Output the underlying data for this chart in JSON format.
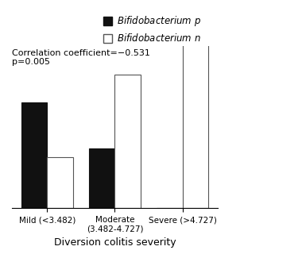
{
  "categories": [
    "Mild (<3.482)",
    "Moderate\n(3.482-4.727)",
    "Severe (>4.727)"
  ],
  "series1_label": "Bifidobacterium p",
  "series2_label": "Bifidobacterium n",
  "series1_values": [
    0.62,
    0.35,
    0.0
  ],
  "series2_values": [
    0.3,
    0.78,
    1.5
  ],
  "series1_color": "#111111",
  "series2_color": "#ffffff",
  "series1_edgecolor": "#111111",
  "series2_edgecolor": "#555555",
  "bar_width": 0.38,
  "ylim": [
    0,
    0.95
  ],
  "xlabel": "Diversion colitis severity",
  "annotation": "Correlation coefficient=−0.531\np=0.005",
  "background_color": "#ffffff",
  "fontsize": 9,
  "legend_fontsize": 9
}
